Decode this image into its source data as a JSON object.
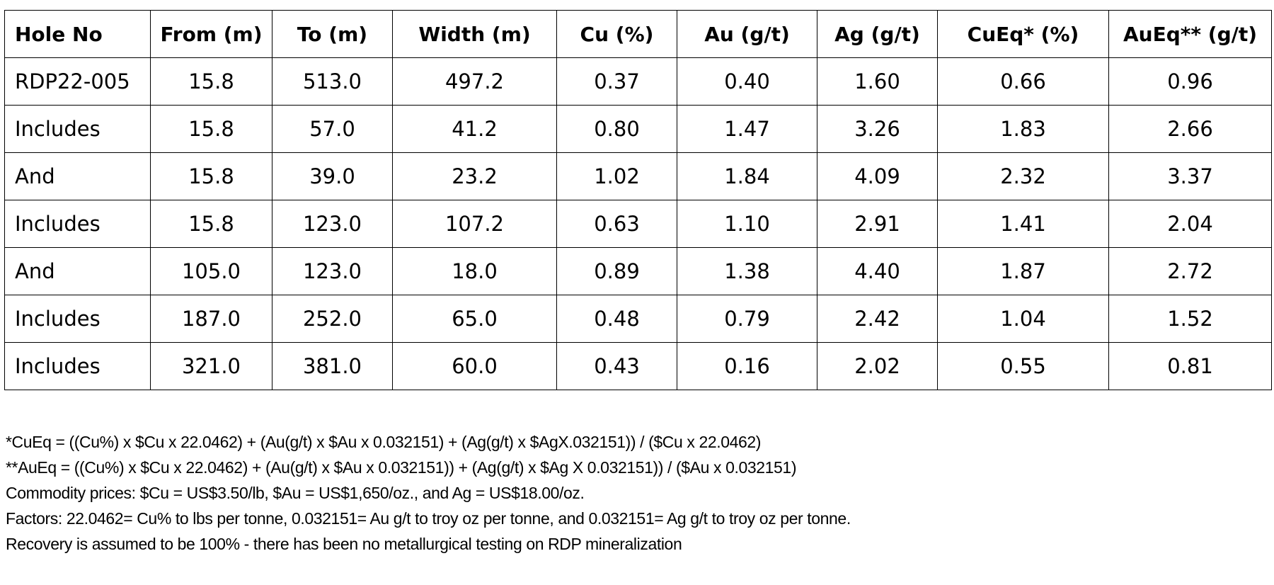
{
  "table": {
    "headers": [
      "Hole No",
      "From (m)",
      "To (m)",
      "Width (m)",
      "Cu (%)",
      "Au (g/t)",
      "Ag (g/t)",
      "CuEq* (%)",
      "AuEq** (g/t)"
    ],
    "rows": [
      [
        "RDP22-005",
        "15.8",
        "513.0",
        "497.2",
        "0.37",
        "0.40",
        "1.60",
        "0.66",
        "0.96"
      ],
      [
        "Includes",
        "15.8",
        "57.0",
        "41.2",
        "0.80",
        "1.47",
        "3.26",
        "1.83",
        "2.66"
      ],
      [
        "And",
        "15.8",
        "39.0",
        "23.2",
        "1.02",
        "1.84",
        "4.09",
        "2.32",
        "3.37"
      ],
      [
        "Includes",
        "15.8",
        "123.0",
        "107.2",
        "0.63",
        "1.10",
        "2.91",
        "1.41",
        "2.04"
      ],
      [
        "And",
        "105.0",
        "123.0",
        "18.0",
        "0.89",
        "1.38",
        "4.40",
        "1.87",
        "2.72"
      ],
      [
        "Includes",
        "187.0",
        "252.0",
        "65.0",
        "0.48",
        "0.79",
        "2.42",
        "1.04",
        "1.52"
      ],
      [
        "Includes",
        "321.0",
        "381.0",
        "60.0",
        "0.43",
        "0.16",
        "2.02",
        "0.55",
        "0.81"
      ]
    ]
  },
  "footnotes": {
    "cueq_formula": "*CuEq = ((Cu%) x $Cu x 22.0462) + (Au(g/t) x $Au x 0.032151) + (Ag(g/t) x $AgX.032151)) / ($Cu x 22.0462)",
    "aueq_formula": "**AuEq = ((Cu%) x $Cu x 22.0462) + (Au(g/t) x $Au x 0.032151)) + (Ag(g/t) x $Ag X 0.032151)) / ($Au x 0.032151)",
    "commodity_prices": "Commodity prices:  $Cu = US$3.50/lb, $Au = US$1,650/oz., and Ag = US$18.00/oz.",
    "factors": "Factors: 22.0462= Cu% to lbs per tonne, 0.032151= Au g/t to troy oz per tonne, and 0.032151= Ag g/t to troy oz per tonne.",
    "recovery": "Recovery is assumed to be 100% - there has been no metallurgical testing on RDP mineralization"
  }
}
